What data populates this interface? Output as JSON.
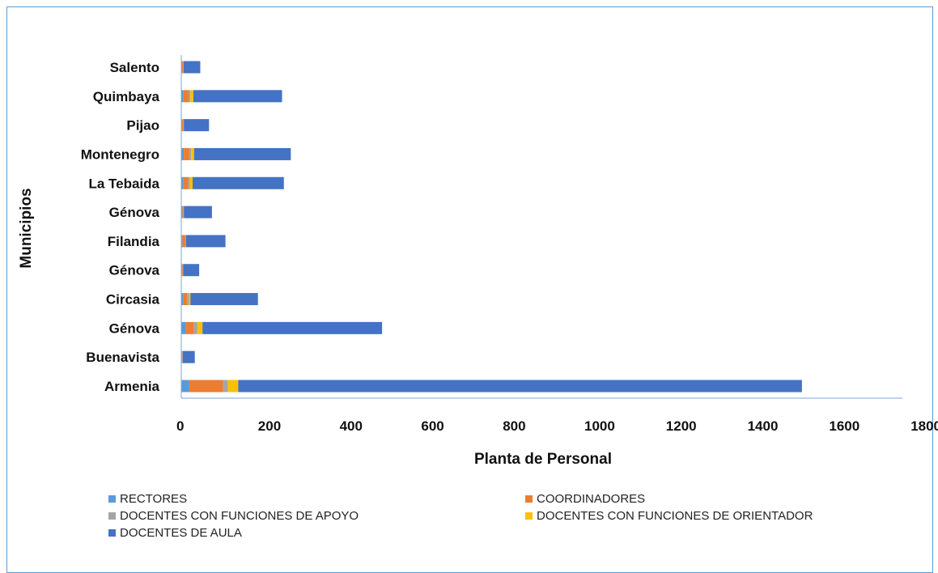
{
  "chart_data": {
    "type": "bar",
    "orientation": "horizontal",
    "stacked": true,
    "title": "",
    "xlabel": "Planta de Personal",
    "ylabel": "Municipios",
    "xlim": [
      0,
      1800
    ],
    "xticks": [
      "0",
      "200",
      "400",
      "600",
      "800",
      "1000",
      "1200",
      "1400",
      "1600",
      "1800"
    ],
    "grid": false,
    "legend_position": "bottom",
    "categories": [
      "Armenia",
      "Buenavista",
      "Génova",
      "Circasia",
      "Génova",
      "Filandia",
      "Génova",
      "La Tebaida",
      "Montenegro",
      "Pijao",
      "Quimbaya",
      "Salento"
    ],
    "series": [
      {
        "name": "RECTORES",
        "color": "#5b9bd5",
        "values": [
          22,
          2,
          12,
          6,
          2,
          3,
          3,
          6,
          7,
          2,
          6,
          2
        ]
      },
      {
        "name": "COORDINADORES",
        "color": "#ed7d31",
        "values": [
          92,
          1,
          22,
          10,
          2,
          8,
          3,
          13,
          15,
          4,
          14,
          3
        ]
      },
      {
        "name": "DOCENTES CON FUNCIONES DE APOYO",
        "color": "#a5a5a5",
        "values": [
          14,
          1,
          10,
          5,
          1,
          2,
          1,
          5,
          5,
          1,
          5,
          1
        ]
      },
      {
        "name": "DOCENTES CON FUNCIONES DE ORIENTADOR",
        "color": "#ffc000",
        "values": [
          28,
          0,
          14,
          4,
          0,
          0,
          0,
          7,
          8,
          0,
          8,
          0
        ]
      },
      {
        "name": "DOCENTES DE AULA",
        "color": "#4472c4",
        "values": [
          1544,
          33,
          492,
          185,
          44,
          108,
          77,
          250,
          265,
          69,
          243,
          46
        ]
      }
    ]
  }
}
